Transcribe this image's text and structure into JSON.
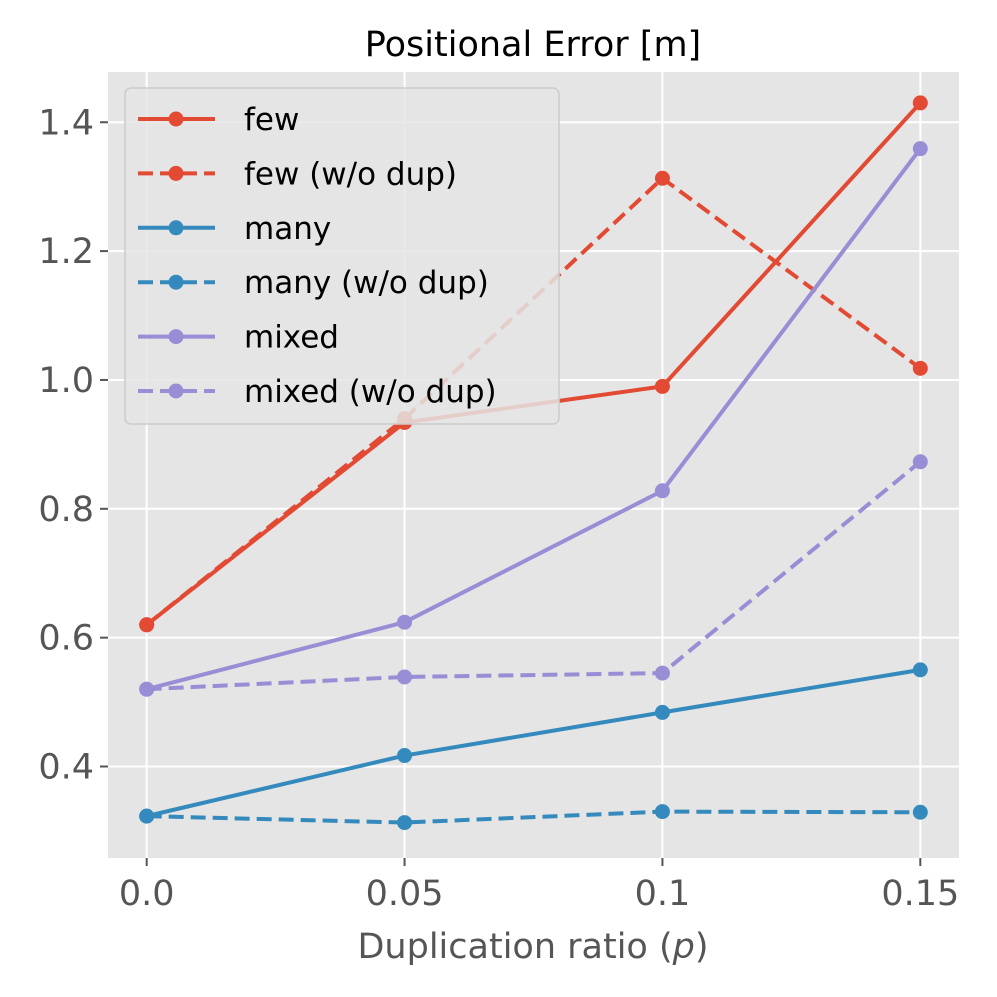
{
  "chart_data": {
    "type": "line",
    "title": "Positional Error [m]",
    "xlabel": "Duplication ratio (",
    "xlabel_var": "p",
    "xlabel_end": ")",
    "ylabel": "",
    "categories": [
      "0.0",
      "0.05",
      "0.1",
      "0.15"
    ],
    "x": [
      0.0,
      0.05,
      0.1,
      0.15
    ],
    "xlim": [
      -0.0075,
      0.1575
    ],
    "ylim": [
      0.258,
      1.478
    ],
    "yticks": [
      0.4,
      0.6,
      0.8,
      1.0,
      1.2,
      1.4
    ],
    "ytick_labels": [
      "0.4",
      "0.6",
      "0.8",
      "1.0",
      "1.2",
      "1.4"
    ],
    "grid": true,
    "legend_position": "upper-left",
    "series": [
      {
        "name": "few",
        "color": "#E24A33",
        "dash": "solid",
        "values": [
          0.62,
          0.934,
          0.99,
          1.43
        ]
      },
      {
        "name": "few (w/o dup)",
        "color": "#E24A33",
        "dash": "dashed",
        "values": [
          0.62,
          0.94,
          1.313,
          1.018
        ]
      },
      {
        "name": "many",
        "color": "#348ABD",
        "dash": "solid",
        "values": [
          0.323,
          0.417,
          0.484,
          0.55
        ]
      },
      {
        "name": "many (w/o dup)",
        "color": "#348ABD",
        "dash": "dashed",
        "values": [
          0.323,
          0.313,
          0.33,
          0.329
        ]
      },
      {
        "name": "mixed",
        "color": "#988ED5",
        "dash": "solid",
        "values": [
          0.52,
          0.624,
          0.828,
          1.359
        ]
      },
      {
        "name": "mixed (w/o dup)",
        "color": "#988ED5",
        "dash": "dashed",
        "values": [
          0.52,
          0.539,
          0.545,
          0.873
        ]
      }
    ]
  }
}
